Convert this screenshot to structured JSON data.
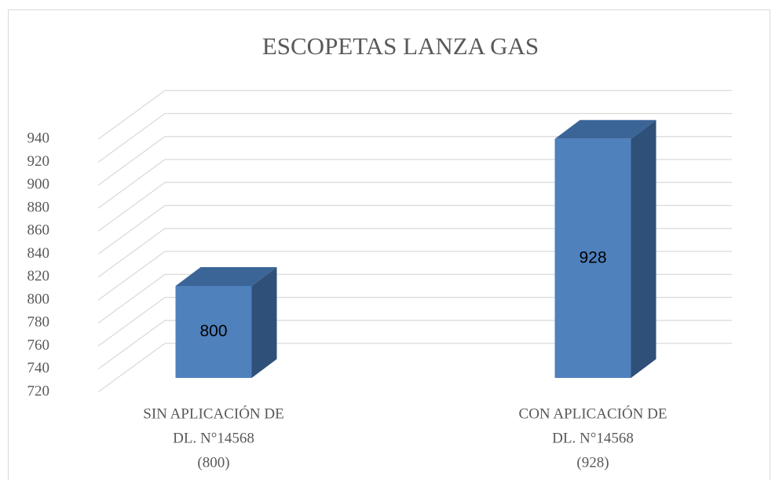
{
  "chart_data": {
    "type": "bar3d",
    "title": "ESCOPETAS LANZA GAS",
    "categories": [
      [
        "SIN APLICACIÓN DE",
        "DL. N°14568",
        "(800)"
      ],
      [
        "CON APLICACIÓN DE",
        "DL. N°14568",
        "(928)"
      ]
    ],
    "values": [
      800,
      928
    ],
    "color": "#4f81bd",
    "ylim": [
      720,
      940
    ],
    "yticks": [
      720,
      740,
      760,
      780,
      800,
      820,
      840,
      860,
      880,
      900,
      920,
      940
    ],
    "grid": true
  }
}
